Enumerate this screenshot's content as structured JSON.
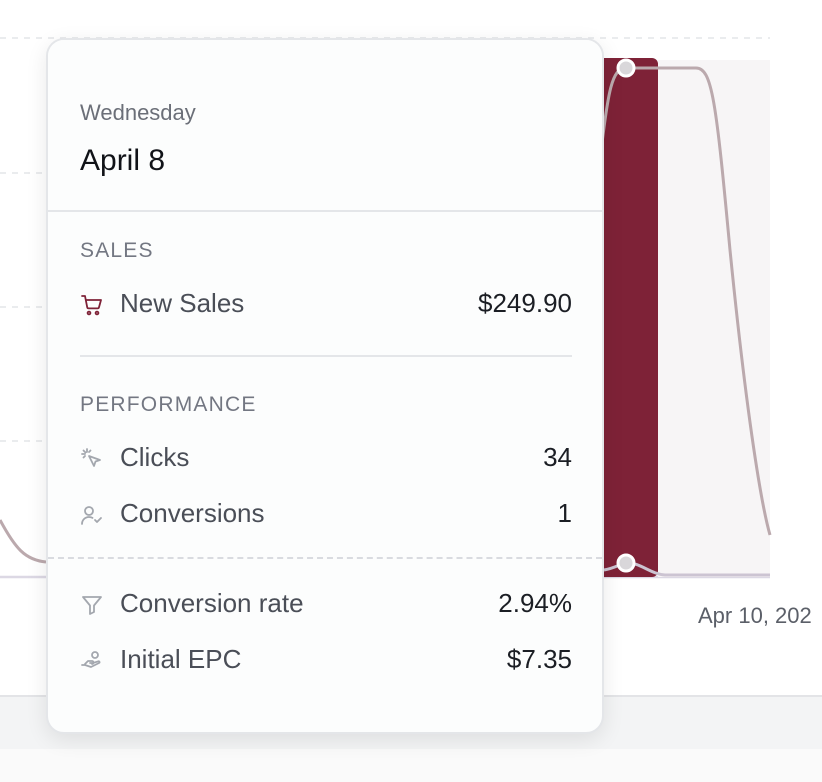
{
  "tooltip": {
    "weekday": "Wednesday",
    "date": "April 8",
    "sales": {
      "heading": "SALES",
      "new_sales": {
        "label": "New Sales",
        "value": "$249.90",
        "icon": "cart-icon"
      }
    },
    "performance": {
      "heading": "PERFORMANCE",
      "clicks": {
        "label": "Clicks",
        "value": "34",
        "icon": "cursor-click-icon"
      },
      "conversions": {
        "label": "Conversions",
        "value": "1",
        "icon": "user-check-icon"
      }
    },
    "metrics": {
      "conversion_rate": {
        "label": "Conversion rate",
        "value": "2.94%",
        "icon": "filter-icon"
      },
      "initial_epc": {
        "label": "Initial EPC",
        "value": "$7.35",
        "icon": "hand-coins-icon"
      }
    }
  },
  "chart": {
    "x_tick_label": "Apr 10, 202",
    "highlight_color": "#7e2237",
    "line_color": "#bba9ad"
  }
}
